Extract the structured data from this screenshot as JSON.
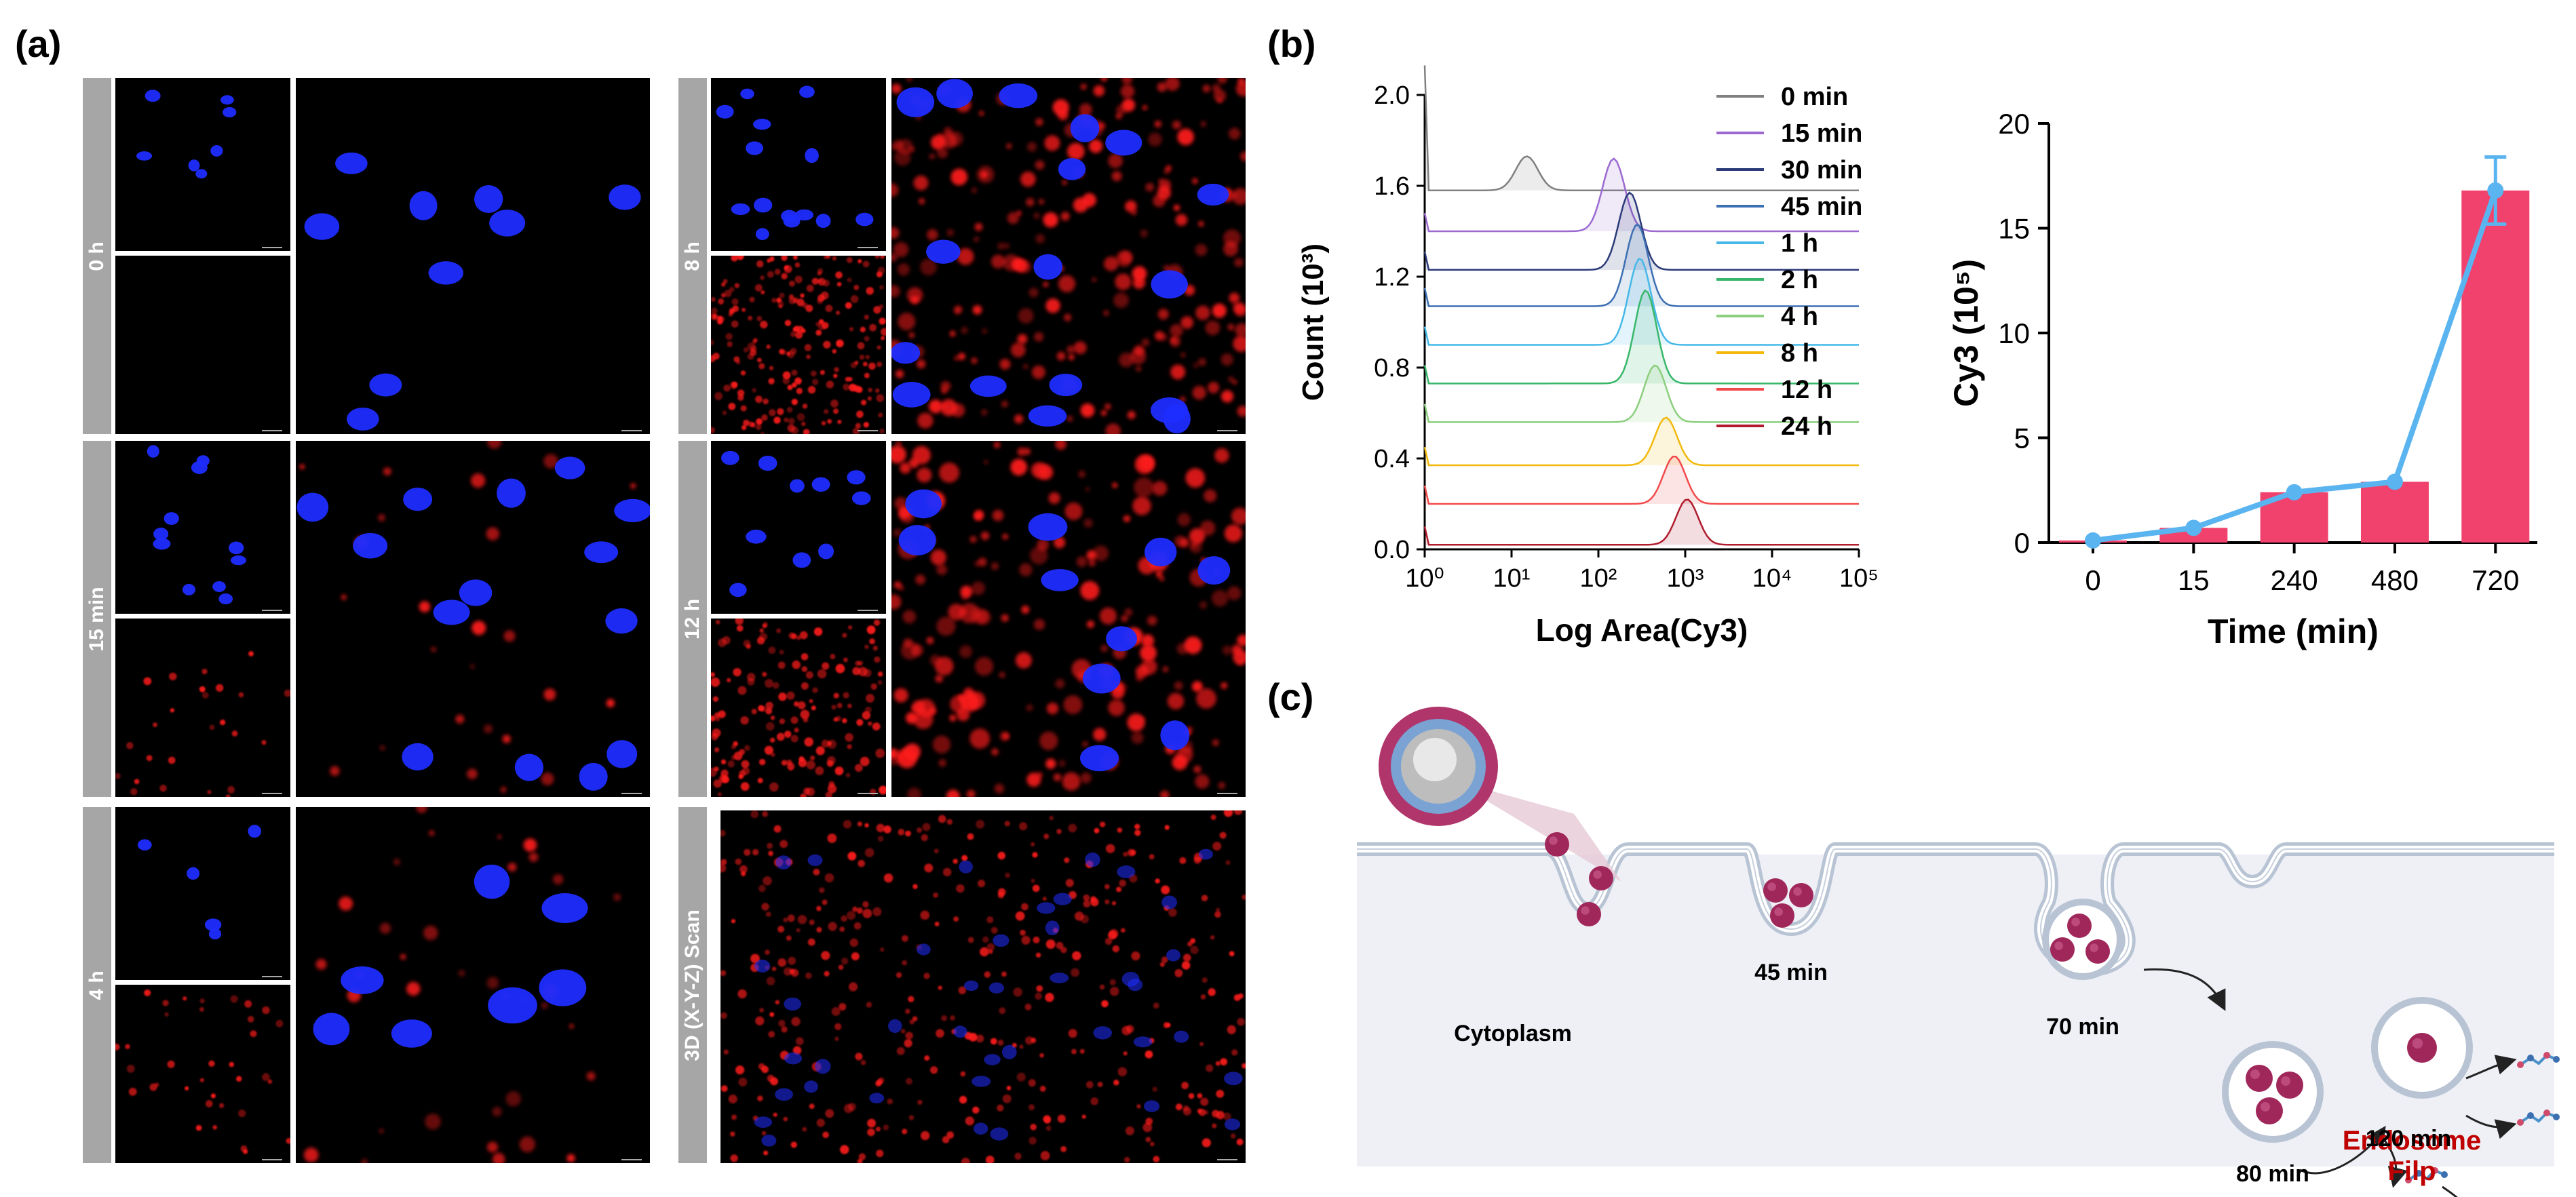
{
  "figure": {
    "panel_a_label": "(a)",
    "panel_b_label": "(b)",
    "panel_c_label": "(c)"
  },
  "panel_a": {
    "rows": [
      {
        "left_label": "0 h",
        "right_label": "8 h"
      },
      {
        "left_label": "15 min",
        "right_label": "12 h"
      },
      {
        "left_label": "4 h",
        "right_label": "3D (X-Y-Z) Scan"
      }
    ]
  },
  "colors": {
    "nucleus_blue": "#1f2dff",
    "cy3_red": "#ff1a1a",
    "bar_pink": "#f0426c",
    "line_blue": "#5ab4f0",
    "membrane": "#b8c4d4",
    "particle": "#a0275a",
    "endosome_flip_red": "#c00000"
  },
  "chart_data": [
    {
      "type": "line",
      "subtype": "stacked-histogram",
      "xlabel": "Log Area(Cy3)",
      "ylabel": "Count (10³)",
      "x_scale": "log",
      "xlim": [
        1,
        100000
      ],
      "ylim": [
        0,
        2.0
      ],
      "xticks": [
        "10⁰",
        "10¹",
        "10²",
        "10³",
        "10⁴",
        "10⁵"
      ],
      "yticks": [
        "0.0",
        "0.4",
        "0.8",
        "1.2",
        "1.6",
        "2.0"
      ],
      "legend_position": "top-right",
      "series": [
        {
          "name": "0 min",
          "color": "#808080",
          "peak_x": 15,
          "baseline": 1.58,
          "height": 0.15
        },
        {
          "name": "15 min",
          "color": "#9b6ad1",
          "peak_x": 150,
          "baseline": 1.4,
          "height": 0.32
        },
        {
          "name": "30 min",
          "color": "#2b3a78",
          "peak_x": 230,
          "baseline": 1.23,
          "height": 0.34
        },
        {
          "name": "45 min",
          "color": "#3d6fb3",
          "peak_x": 280,
          "baseline": 1.07,
          "height": 0.36
        },
        {
          "name": "1 h",
          "color": "#45b8e8",
          "peak_x": 300,
          "baseline": 0.9,
          "height": 0.38
        },
        {
          "name": "2 h",
          "color": "#38b76a",
          "peak_x": 350,
          "baseline": 0.73,
          "height": 0.41
        },
        {
          "name": "4 h",
          "color": "#8ccf7e",
          "peak_x": 450,
          "baseline": 0.56,
          "height": 0.25
        },
        {
          "name": "8 h",
          "color": "#f2b90c",
          "peak_x": 600,
          "baseline": 0.37,
          "height": 0.21
        },
        {
          "name": "12 h",
          "color": "#f24a4a",
          "peak_x": 750,
          "baseline": 0.2,
          "height": 0.21
        },
        {
          "name": "24 h",
          "color": "#b01c2e",
          "peak_x": 1050,
          "baseline": 0.02,
          "height": 0.2
        }
      ]
    },
    {
      "type": "bar",
      "xlabel": "Time (min)",
      "ylabel": "Cy3 (10⁵)",
      "categories": [
        "0",
        "15",
        "240",
        "480",
        "720"
      ],
      "values": [
        0.1,
        0.7,
        2.4,
        2.9,
        16.8
      ],
      "line_values": [
        0.1,
        0.7,
        2.4,
        2.9,
        16.8
      ],
      "error_values": [
        0.1,
        0.1,
        0.2,
        0.2,
        1.6
      ],
      "ylim": [
        0,
        20
      ],
      "yticks": [
        "0",
        "5",
        "10",
        "15",
        "20"
      ]
    }
  ],
  "panel_c": {
    "labels": {
      "cytoplasm": "Cytoplasm",
      "t45": "45 min",
      "t70": "70 min",
      "t80": "80 min",
      "t120": "120 min",
      "endosome": "Endosome",
      "filp": "Filp"
    }
  }
}
